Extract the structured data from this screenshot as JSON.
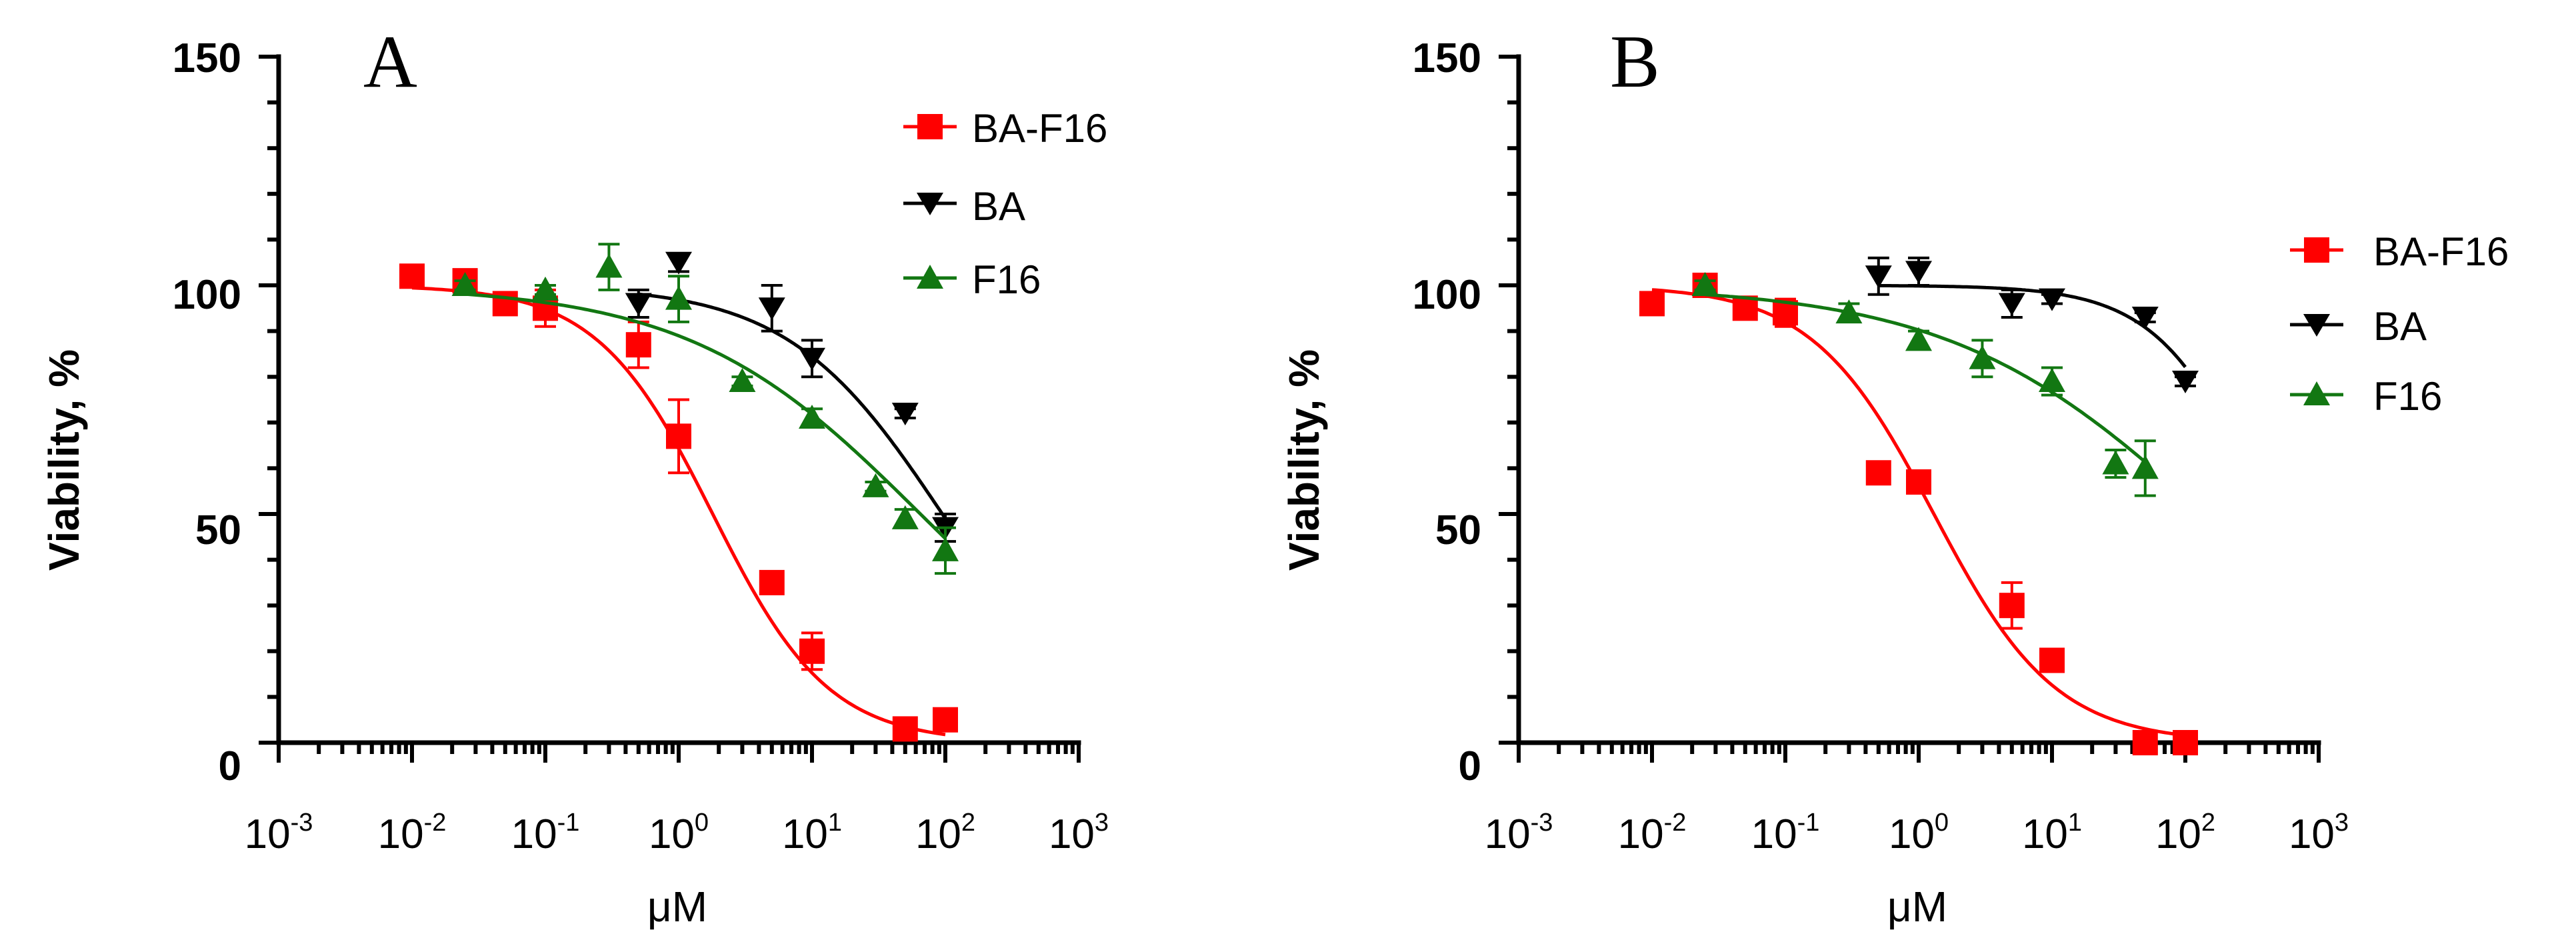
{
  "chart_data": [
    {
      "type": "scatter",
      "panel": "A",
      "title": "",
      "xlabel": "μM",
      "ylabel": "Viability, %",
      "xscale": "log",
      "xlim": [
        0.001,
        1000
      ],
      "ylim": [
        0,
        150
      ],
      "yticks": [
        "0",
        "50",
        "100",
        "150"
      ],
      "xticks": [
        {
          "base": "10",
          "exp": "-3"
        },
        {
          "base": "10",
          "exp": "-2"
        },
        {
          "base": "10",
          "exp": "-1"
        },
        {
          "base": "10",
          "exp": "0"
        },
        {
          "base": "10",
          "exp": "1"
        },
        {
          "base": "10",
          "exp": "2"
        },
        {
          "base": "10",
          "exp": "3"
        }
      ],
      "grid": false,
      "legend_position": "top-right",
      "series": [
        {
          "name": "BA-F16",
          "marker": "square",
          "color": "#ff0000",
          "x": [
            0.01,
            0.025,
            0.05,
            0.1,
            0.5,
            1,
            5,
            10,
            50,
            100
          ],
          "y": [
            102,
            101,
            96,
            95,
            87,
            67,
            35,
            20,
            3,
            5
          ],
          "err": [
            2,
            2,
            2,
            4,
            5,
            8,
            2,
            4,
            2,
            1
          ],
          "fit": {
            "top": 100,
            "bottom": 0,
            "ic50": 1.8,
            "hill": 1.0
          }
        },
        {
          "name": "BA",
          "marker": "triangle-down",
          "color": "#000000",
          "x": [
            0.5,
            1,
            5,
            10,
            50,
            100
          ],
          "y": [
            96,
            105,
            95,
            84,
            72,
            47
          ],
          "err": [
            3,
            2,
            5,
            4,
            1,
            3
          ],
          "fit": {
            "top": 100,
            "bottom": 0,
            "ic50": 95,
            "hill": 0.75
          }
        },
        {
          "name": "F16",
          "marker": "triangle-up",
          "color": "#127712",
          "x": [
            0.025,
            0.1,
            0.3,
            1,
            3,
            10,
            30,
            50,
            100
          ],
          "y": [
            100,
            99,
            104,
            97,
            79,
            71,
            56,
            49,
            42
          ],
          "err": [
            1,
            1,
            5,
            5,
            1,
            2,
            1,
            2,
            5
          ],
          "fit": {
            "top": 100,
            "bottom": 0,
            "ic50": 65,
            "hill": 0.5
          }
        }
      ]
    },
    {
      "type": "scatter",
      "panel": "B",
      "title": "",
      "xlabel": "μM",
      "ylabel": "Viability, %",
      "xscale": "log",
      "xlim": [
        0.001,
        1000
      ],
      "ylim": [
        0,
        150
      ],
      "yticks": [
        "0",
        "50",
        "100",
        "150"
      ],
      "xticks": [
        {
          "base": "10",
          "exp": "-3"
        },
        {
          "base": "10",
          "exp": "-2"
        },
        {
          "base": "10",
          "exp": "-1"
        },
        {
          "base": "10",
          "exp": "0"
        },
        {
          "base": "10",
          "exp": "1"
        },
        {
          "base": "10",
          "exp": "2"
        },
        {
          "base": "10",
          "exp": "3"
        }
      ],
      "grid": false,
      "legend_position": "top-right",
      "series": [
        {
          "name": "BA-F16",
          "marker": "square",
          "color": "#ff0000",
          "x": [
            0.01,
            0.025,
            0.05,
            0.1,
            0.5,
            1,
            5,
            10,
            50,
            100
          ],
          "y": [
            96,
            100,
            95,
            94,
            59,
            57,
            30,
            18,
            0,
            0
          ],
          "err": [
            1,
            2,
            1,
            3,
            1,
            1,
            5,
            1,
            1,
            1
          ],
          "fit": {
            "top": 100,
            "bottom": 0,
            "ic50": 1.3,
            "hill": 0.95
          }
        },
        {
          "name": "BA",
          "marker": "triangle-down",
          "color": "#000000",
          "x": [
            0.5,
            1,
            5,
            10,
            50,
            100
          ],
          "y": [
            102,
            103,
            96,
            97,
            93,
            79
          ],
          "err": [
            4,
            3,
            3,
            1,
            1,
            1
          ],
          "fit": {
            "top": 100,
            "bottom": 0,
            "ic50": 400,
            "hill": 1.1
          }
        },
        {
          "name": "F16",
          "marker": "triangle-up",
          "color": "#127712",
          "x": [
            0.025,
            0.3,
            1,
            3,
            10,
            30,
            50
          ],
          "y": [
            100,
            94,
            88,
            84,
            79,
            61,
            60
          ],
          "err": [
            1,
            2,
            2,
            4,
            3,
            3,
            6
          ],
          "fit": {
            "top": 100,
            "bottom": 0,
            "ic50": 140,
            "hill": 0.45
          }
        }
      ]
    }
  ]
}
